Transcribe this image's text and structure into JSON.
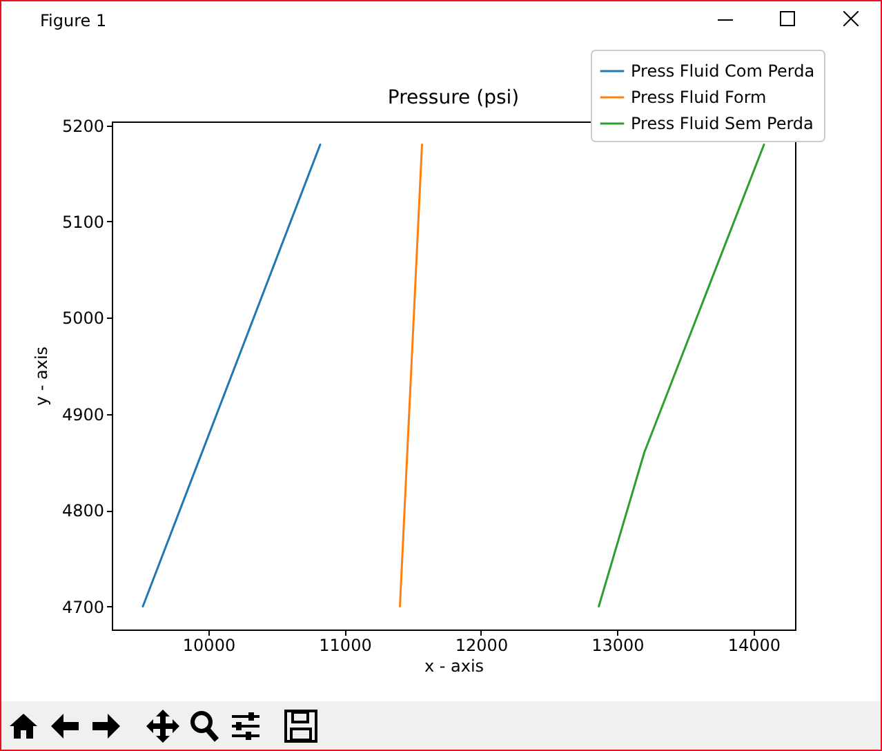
{
  "chart_data": {
    "type": "line",
    "title": "Pressure (psi)",
    "xlabel": "x - axis",
    "ylabel": "y - axis",
    "annotations": [
      "Figure 1"
    ],
    "series": [
      {
        "name": "Press Fluid Com Perda",
        "color": "#1f77b4",
        "x": [
          9519,
          10820
        ],
        "values": [
          4700,
          5180
        ]
      },
      {
        "name": "Press Fluid Form",
        "color": "#ff7f0e",
        "x": [
          11405,
          11567
        ],
        "values": [
          4700,
          5180
        ]
      },
      {
        "name": "Press Fluid Sem Perda",
        "color": "#2ca02c",
        "x": [
          12864,
          13198,
          14076
        ],
        "values": [
          4700,
          4860,
          5180
        ]
      }
    ],
    "xlim": [
      9291,
      14304
    ],
    "ylim": [
      4676,
      5204
    ],
    "xticks": [
      10000,
      11000,
      12000,
      13000,
      14000
    ],
    "yticks": [
      4700,
      4800,
      4900,
      5000,
      5100,
      5200
    ],
    "grid": false,
    "legend": "top right",
    "marker": "none",
    "line_style": "solid"
  }
}
